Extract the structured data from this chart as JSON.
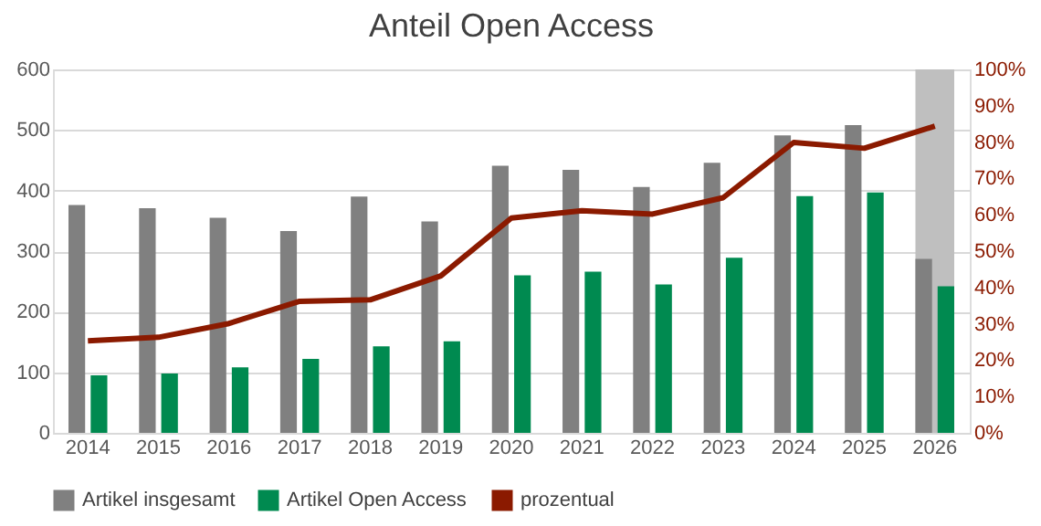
{
  "chart_data": {
    "type": "bar",
    "title": "Anteil Open Access",
    "categories": [
      "2014",
      "2015",
      "2016",
      "2017",
      "2018",
      "2019",
      "2020",
      "2021",
      "2022",
      "2023",
      "2024",
      "2025",
      "2026"
    ],
    "series": [
      {
        "name": "Artikel insgesamt",
        "color": "#808080",
        "values": [
          376,
          371,
          355,
          333,
          390,
          349,
          441,
          434,
          406,
          446,
          491,
          508,
          287
        ]
      },
      {
        "name": "Artikel Open Access",
        "color": "#008a50",
        "values": [
          95,
          98,
          108,
          122,
          143,
          151,
          260,
          266,
          245,
          289,
          391,
          397,
          242
        ]
      },
      {
        "name": "prozentual",
        "type": "line",
        "axis": "y2",
        "color": "#8b1a00",
        "values": [
          25.3,
          26.3,
          30.1,
          36.2,
          36.6,
          43.2,
          59.1,
          61.1,
          60.2,
          64.7,
          79.9,
          78.3,
          84.4
        ]
      }
    ],
    "ylim": [
      0,
      600
    ],
    "yticks": [
      0,
      100,
      200,
      300,
      400,
      500,
      600
    ],
    "y2lim": [
      0,
      100
    ],
    "y2ticks": [
      {
        "value": 0,
        "label": "0%"
      },
      {
        "value": 10,
        "label": "10%"
      },
      {
        "value": 20,
        "label": "20%"
      },
      {
        "value": 30,
        "label": "30%"
      },
      {
        "value": 40,
        "label": "40%"
      },
      {
        "value": 50,
        "label": "50%"
      },
      {
        "value": 60,
        "label": "60%"
      },
      {
        "value": 70,
        "label": "70%"
      },
      {
        "value": 80,
        "label": "80%"
      },
      {
        "value": 90,
        "label": "90%"
      },
      {
        "value": 100,
        "label": "100%"
      }
    ],
    "bands": [
      {
        "axis": "x",
        "from": "2026",
        "to": "2026",
        "color": "#bfbfbf"
      }
    ],
    "grid": "y",
    "legend": "bottom"
  }
}
